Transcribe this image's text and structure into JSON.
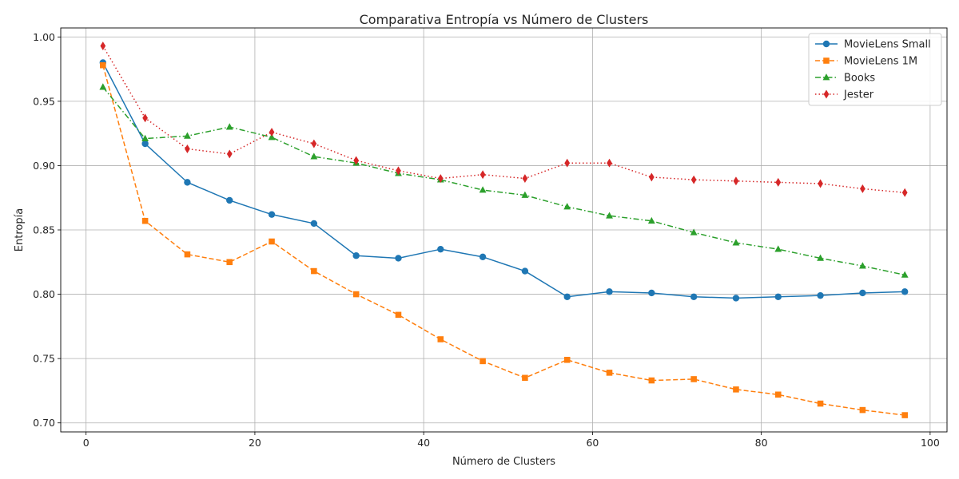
{
  "chart_data": {
    "type": "line",
    "title": "Comparativa Entropía vs Número de Clusters",
    "xlabel": "Número de Clusters",
    "ylabel": "Entropía",
    "xlim": [
      -3,
      102
    ],
    "ylim": [
      0.693,
      1.007
    ],
    "xticks": [
      0,
      20,
      40,
      60,
      80,
      100
    ],
    "yticks": [
      0.7,
      0.75,
      0.8,
      0.85,
      0.9,
      0.95,
      1.0
    ],
    "xtick_labels": [
      "0",
      "20",
      "40",
      "60",
      "80",
      "100"
    ],
    "ytick_labels": [
      "0.70",
      "0.75",
      "0.80",
      "0.85",
      "0.90",
      "0.95",
      "1.00"
    ],
    "grid": true,
    "legend_position": "top-right",
    "x": [
      2,
      7,
      12,
      17,
      22,
      27,
      32,
      37,
      42,
      47,
      52,
      57,
      62,
      67,
      72,
      77,
      82,
      87,
      92,
      97
    ],
    "series": [
      {
        "name": "MovieLens Small",
        "color": "#1f77b4",
        "marker": "circle",
        "line_style": "solid",
        "values": [
          0.98,
          0.917,
          0.887,
          0.873,
          0.862,
          0.855,
          0.83,
          0.828,
          0.835,
          0.829,
          0.818,
          0.798,
          0.802,
          0.801,
          0.798,
          0.797,
          0.798,
          0.799,
          0.801,
          0.802
        ]
      },
      {
        "name": "MovieLens 1M",
        "color": "#ff7f0e",
        "marker": "square",
        "line_style": "dashed",
        "values": [
          0.978,
          0.857,
          0.831,
          0.825,
          0.841,
          0.818,
          0.8,
          0.784,
          0.765,
          0.748,
          0.735,
          0.749,
          0.739,
          0.733,
          0.734,
          0.726,
          0.722,
          0.715,
          0.71,
          0.706
        ]
      },
      {
        "name": "Books",
        "color": "#2ca02c",
        "marker": "triangle",
        "line_style": "dashdot",
        "values": [
          0.961,
          0.921,
          0.923,
          0.93,
          0.922,
          0.907,
          0.902,
          0.894,
          0.889,
          0.881,
          0.877,
          0.868,
          0.861,
          0.857,
          0.848,
          0.84,
          0.835,
          0.828,
          0.822,
          0.815
        ]
      },
      {
        "name": "Jester",
        "color": "#d62728",
        "marker": "diamond",
        "line_style": "dotted",
        "values": [
          0.993,
          0.937,
          0.913,
          0.909,
          0.926,
          0.917,
          0.904,
          0.896,
          0.89,
          0.893,
          0.89,
          0.902,
          0.902,
          0.891,
          0.889,
          0.888,
          0.887,
          0.886,
          0.882,
          0.879
        ]
      }
    ]
  }
}
